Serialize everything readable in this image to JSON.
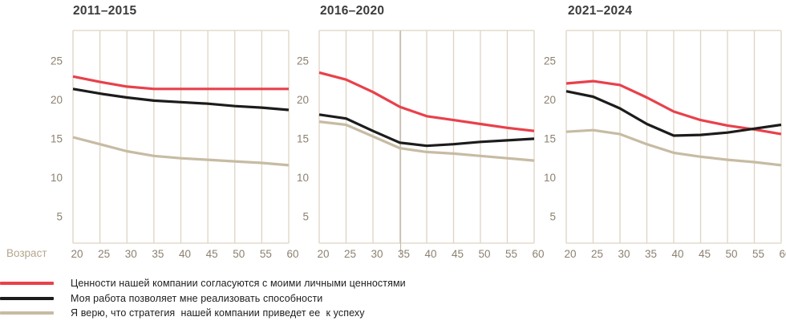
{
  "axis_label": "Возраст",
  "colors": {
    "values_alignment": "#e8414b",
    "work_abilities": "#1c1c1c",
    "strategy_success": "#c7bba3",
    "grid": "#ddd4c3",
    "artifact_line": "#c6bdb0",
    "tick_text": "#8c8170",
    "axis_label_text": "#b4a68c",
    "title_text": "#3b3b3b"
  },
  "legend": [
    {
      "key": "values_alignment",
      "label": "Ценности нашей компании согласуются с моими личными ценностями"
    },
    {
      "key": "work_abilities",
      "label": "Моя работа позволяет мне реализовать способности"
    },
    {
      "key": "strategy_success",
      "label": "Я верю, что стратегия  нашей компании приведет ее  к успеху"
    }
  ],
  "chart_data": [
    {
      "type": "line",
      "title": "2011–2015",
      "x": [
        20,
        25,
        30,
        35,
        40,
        45,
        50,
        55,
        60
      ],
      "xlabel": "Возраст",
      "ylabel": "",
      "y_ticks": [
        5,
        10,
        15,
        20,
        25
      ],
      "ylim": [
        1.6,
        28.9
      ],
      "grid": "vertical",
      "legend_position": "bottom-left",
      "series": [
        {
          "key": "values_alignment",
          "name": "Ценности нашей компании согласуются с моими личными ценностями",
          "values": [
            23.0,
            22.3,
            21.7,
            21.4,
            21.4,
            21.4,
            21.4,
            21.4,
            21.4
          ]
        },
        {
          "key": "work_abilities",
          "name": "Моя работа позволяет мне реализовать способности",
          "values": [
            21.4,
            20.8,
            20.3,
            19.9,
            19.7,
            19.5,
            19.2,
            19.0,
            18.7
          ]
        },
        {
          "key": "strategy_success",
          "name": "Я верю, что стратегия нашей компании приведет ее к успеху",
          "values": [
            15.2,
            14.3,
            13.4,
            12.8,
            12.5,
            12.3,
            12.1,
            11.9,
            11.6
          ]
        }
      ]
    },
    {
      "type": "line",
      "title": "2016–2020",
      "x": [
        20,
        25,
        30,
        35,
        40,
        45,
        50,
        55,
        60
      ],
      "xlabel": "Возраст",
      "ylabel": "",
      "y_ticks": [
        5,
        10,
        15,
        20,
        25
      ],
      "ylim": [
        1.6,
        28.9
      ],
      "grid": "vertical",
      "series": [
        {
          "key": "values_alignment",
          "name": "Ценности нашей компании согласуются с моими личными ценностями",
          "values": [
            23.5,
            22.6,
            21.0,
            19.1,
            17.9,
            17.4,
            16.9,
            16.4,
            16.0
          ]
        },
        {
          "key": "work_abilities",
          "name": "Моя работа позволяет мне реализовать способности",
          "values": [
            18.1,
            17.6,
            16.0,
            14.5,
            14.1,
            14.3,
            14.6,
            14.8,
            15.0
          ]
        },
        {
          "key": "strategy_success",
          "name": "Я верю, что стратегия нашей компании приведет ее к успеху",
          "values": [
            17.2,
            16.8,
            15.3,
            13.8,
            13.3,
            13.1,
            12.8,
            12.5,
            12.2
          ]
        }
      ]
    },
    {
      "type": "line",
      "title": "2021–2024",
      "x": [
        20,
        25,
        30,
        35,
        40,
        45,
        50,
        55,
        60
      ],
      "xlabel": "Возраст",
      "ylabel": "",
      "y_ticks": [
        5,
        10,
        15,
        20,
        25
      ],
      "ylim": [
        1.6,
        28.9
      ],
      "grid": "vertical",
      "series": [
        {
          "key": "values_alignment",
          "name": "Ценности нашей компании согласуются с моими личными ценностями",
          "values": [
            22.1,
            22.4,
            21.9,
            20.3,
            18.5,
            17.4,
            16.7,
            16.2,
            15.6
          ]
        },
        {
          "key": "work_abilities",
          "name": "Моя работа позволяет мне реализовать способности",
          "values": [
            21.1,
            20.4,
            18.9,
            16.9,
            15.4,
            15.5,
            15.8,
            16.3,
            16.8
          ]
        },
        {
          "key": "strategy_success",
          "name": "Я верю, что стратегия нашей компании приведет ее к успеху",
          "values": [
            15.9,
            16.1,
            15.6,
            14.3,
            13.2,
            12.7,
            12.3,
            12.0,
            11.6
          ]
        }
      ]
    }
  ]
}
